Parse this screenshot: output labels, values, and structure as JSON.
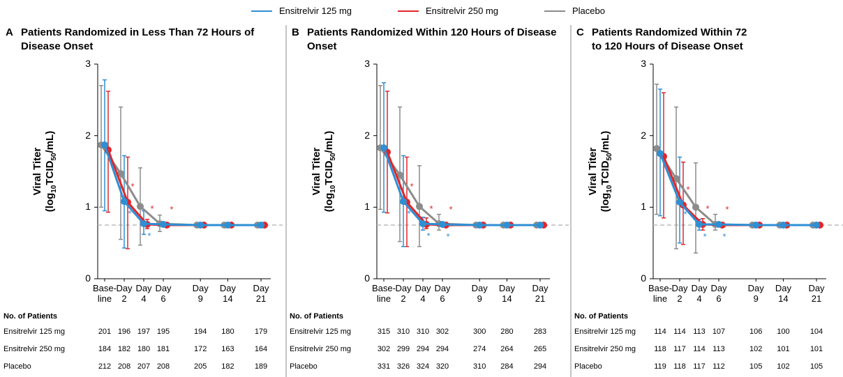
{
  "chart_data": [
    {
      "type": "line",
      "panel": "A",
      "title": "Patients Randomized in Less Than 72 Hours of Disease Onset",
      "ylabel": [
        "Viral Titer",
        "(log",
        "10",
        "TCID",
        "50",
        "/mL)"
      ],
      "categories": [
        "Base-\nline",
        "Day\n2",
        "Day\n4",
        "Day\n6",
        "Day\n9",
        "Day\n14",
        "Day\n21"
      ],
      "ylim": [
        0,
        3
      ],
      "yticks": [
        0,
        1,
        2,
        3
      ],
      "reference_line": 0.75,
      "table_title": "No. of Patients",
      "series": [
        {
          "name": "Placebo",
          "color": "#8c8c8c",
          "values": [
            1.87,
            1.47,
            1.01,
            0.77,
            0.75,
            0.75,
            0.75
          ],
          "lower": [
            1.0,
            0.55,
            0.47,
            0.66,
            null,
            null,
            null
          ],
          "upper": [
            2.7,
            2.4,
            1.55,
            0.89,
            null,
            null,
            null
          ],
          "n": [
            212,
            208,
            207,
            208,
            205,
            182,
            189
          ]
        },
        {
          "name": "Ensitrelvir 250 mg",
          "color": "#e0262b",
          "values": [
            1.8,
            1.07,
            0.76,
            0.75,
            0.75,
            0.75,
            0.75
          ],
          "lower": [
            0.93,
            0.42,
            0.7,
            null,
            null,
            null,
            null
          ],
          "upper": [
            2.62,
            1.7,
            0.83,
            null,
            null,
            null,
            null
          ],
          "marks": [
            null,
            "*",
            "*",
            "*",
            null,
            null,
            null
          ],
          "n": [
            184,
            182,
            180,
            181,
            172,
            163,
            164
          ]
        },
        {
          "name": "Ensitrelvir 125 mg",
          "color": "#2e8fd4",
          "values": [
            1.87,
            1.08,
            0.77,
            0.76,
            0.75,
            0.75,
            0.75
          ],
          "lower": [
            0.95,
            0.43,
            0.62,
            null,
            null,
            null,
            null
          ],
          "upper": [
            2.78,
            1.72,
            0.95,
            null,
            null,
            null,
            null
          ],
          "marks": [
            null,
            "*",
            "*",
            null,
            null,
            null,
            null
          ],
          "n": [
            201,
            196,
            197,
            195,
            194,
            180,
            179
          ]
        }
      ]
    },
    {
      "type": "line",
      "panel": "B",
      "title": "Patients Randomized Within 120 Hours of Disease Onset",
      "ylabel": [
        "Viral Titer",
        "(log",
        "10",
        "TCID",
        "50",
        "/mL)"
      ],
      "categories": [
        "Base-\nline",
        "Day\n2",
        "Day\n4",
        "Day\n6",
        "Day\n9",
        "Day\n14",
        "Day\n21"
      ],
      "ylim": [
        0,
        3
      ],
      "yticks": [
        0,
        1,
        2,
        3
      ],
      "reference_line": 0.75,
      "table_title": "No. of Patients",
      "series": [
        {
          "name": "Placebo",
          "color": "#8c8c8c",
          "values": [
            1.83,
            1.45,
            1.01,
            0.77,
            0.75,
            0.75,
            0.75
          ],
          "lower": [
            0.97,
            0.52,
            0.45,
            0.68,
            null,
            null,
            null
          ],
          "upper": [
            2.7,
            2.4,
            1.58,
            0.9,
            null,
            null,
            null
          ],
          "n": [
            331,
            326,
            324,
            320,
            310,
            284,
            294
          ]
        },
        {
          "name": "Ensitrelvir 250 mg",
          "color": "#e0262b",
          "values": [
            1.77,
            1.07,
            0.76,
            0.75,
            0.75,
            0.75,
            0.75
          ],
          "lower": [
            0.92,
            0.45,
            0.7,
            null,
            null,
            null,
            null
          ],
          "upper": [
            2.62,
            1.7,
            0.85,
            null,
            null,
            null,
            null
          ],
          "marks": [
            null,
            "*",
            "*",
            "*",
            null,
            null,
            null
          ],
          "n": [
            302,
            299,
            294,
            294,
            274,
            264,
            265
          ]
        },
        {
          "name": "Ensitrelvir 125 mg",
          "color": "#2e8fd4",
          "values": [
            1.83,
            1.08,
            0.77,
            0.76,
            0.75,
            0.75,
            0.75
          ],
          "lower": [
            0.93,
            0.45,
            0.68,
            null,
            null,
            null,
            null
          ],
          "upper": [
            2.74,
            1.72,
            0.86,
            null,
            null,
            null,
            null
          ],
          "marks": [
            null,
            "*",
            "*",
            "*",
            null,
            null,
            null
          ],
          "n": [
            315,
            310,
            310,
            302,
            300,
            280,
            283
          ]
        }
      ]
    },
    {
      "type": "line",
      "panel": "C",
      "title": "Patients Randomized Within 72 to 120 Hours of Disease Onset",
      "ylabel": [
        "Viral Titer",
        "(log",
        "10",
        "TCID",
        "50",
        "/mL)"
      ],
      "categories": [
        "Base-\nline",
        "Day\n2",
        "Day\n4",
        "Day\n6",
        "Day\n9",
        "Day\n14",
        "Day\n21"
      ],
      "ylim": [
        0,
        3
      ],
      "yticks": [
        0,
        1,
        2,
        3
      ],
      "reference_line": 0.75,
      "table_title": "No. of Patients",
      "series": [
        {
          "name": "Placebo",
          "color": "#8c8c8c",
          "values": [
            1.82,
            1.4,
            1.0,
            0.76,
            0.75,
            0.75,
            0.75
          ],
          "lower": [
            0.9,
            0.42,
            0.36,
            0.68,
            null,
            null,
            null
          ],
          "upper": [
            2.72,
            2.4,
            1.62,
            0.9,
            null,
            null,
            null
          ],
          "n": [
            119,
            118,
            117,
            112,
            105,
            102,
            105
          ]
        },
        {
          "name": "Ensitrelvir 250 mg",
          "color": "#e0262b",
          "values": [
            1.71,
            1.03,
            0.76,
            0.75,
            0.75,
            0.75,
            0.75
          ],
          "lower": [
            0.85,
            0.48,
            0.68,
            null,
            null,
            null,
            null
          ],
          "upper": [
            2.6,
            1.63,
            0.84,
            null,
            null,
            null,
            null
          ],
          "marks": [
            null,
            "*",
            "*",
            "*",
            null,
            null,
            null
          ],
          "n": [
            118,
            117,
            114,
            113,
            102,
            101,
            101
          ]
        },
        {
          "name": "Ensitrelvir 125 mg",
          "color": "#2e8fd4",
          "values": [
            1.75,
            1.07,
            0.76,
            0.76,
            0.75,
            0.75,
            0.75
          ],
          "lower": [
            0.88,
            0.5,
            0.68,
            null,
            null,
            null,
            null
          ],
          "upper": [
            2.65,
            1.7,
            0.83,
            null,
            null,
            null,
            null
          ],
          "marks": [
            null,
            "*",
            "*",
            "*",
            null,
            null,
            null
          ],
          "n": [
            114,
            114,
            113,
            107,
            106,
            100,
            104
          ]
        }
      ]
    }
  ]
}
